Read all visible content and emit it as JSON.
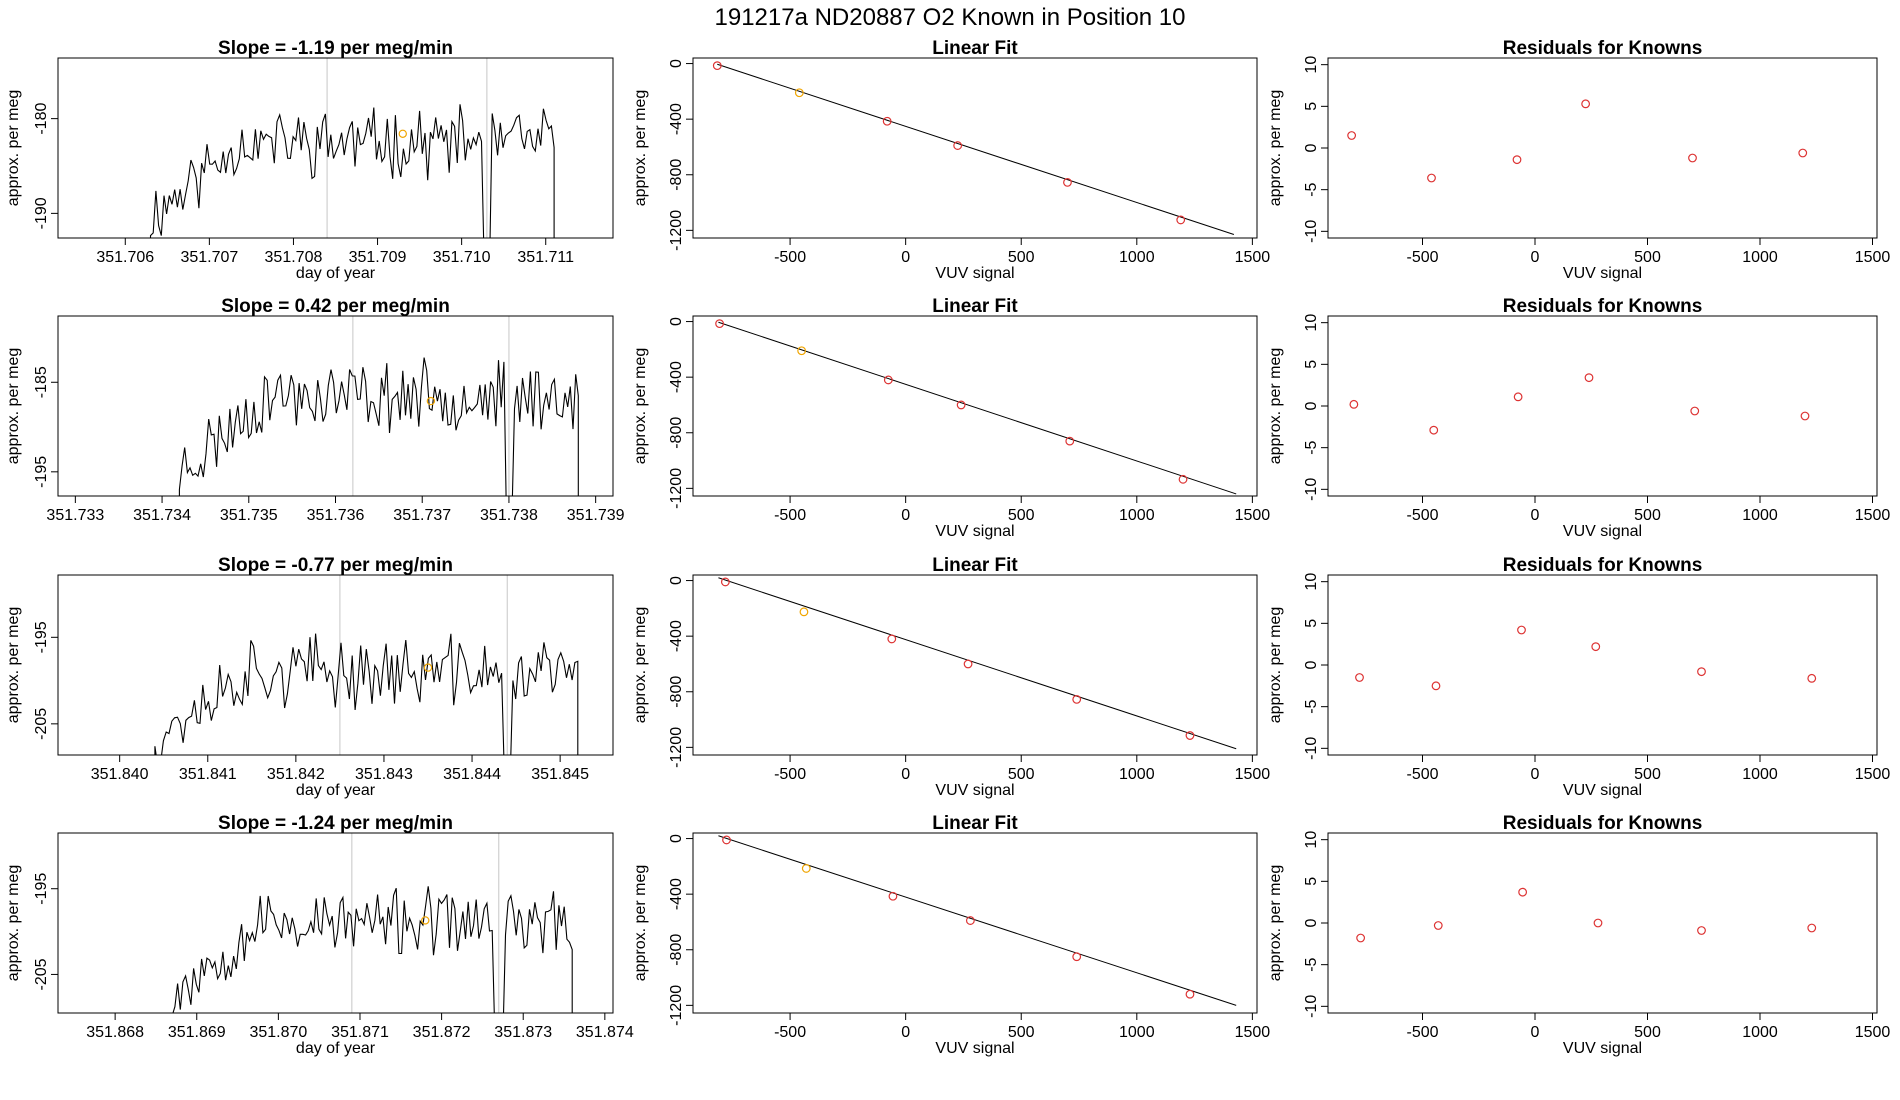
{
  "figure": {
    "title": "191217a      ND20887    O2 Known in Position  10",
    "colors": {
      "line": "#000000",
      "known": "#dd3333",
      "selected": "#f0a500",
      "vline": "#d0d0d0",
      "frame": "#000000"
    }
  },
  "chart_data": [
    {
      "type": "line",
      "panel": "timeseries",
      "row": 0,
      "title": "Slope =  -1.19  per meg/min",
      "xlabel": "day of year",
      "ylabel": "approx. per meg",
      "xlim": [
        351.7052,
        351.7118
      ],
      "ylim": [
        -192.6,
        -173.6
      ],
      "xticks": [
        351.706,
        351.707,
        351.708,
        351.709,
        351.71,
        351.711
      ],
      "xtick_labels": [
        "351.706",
        "351.707",
        "351.708",
        "351.709",
        "351.710",
        "351.711"
      ],
      "yticks": [
        -180,
        -190
      ],
      "ytick_labels": [
        "-180",
        "-190"
      ],
      "vlines": [
        351.7084,
        351.7103
      ],
      "start": 351.7063,
      "end": 351.7111,
      "base": -182.5,
      "amp": 2.8,
      "seed": 11,
      "selected_point": {
        "x": 351.7093,
        "y": -181.6
      }
    },
    {
      "type": "line",
      "panel": "timeseries",
      "row": 1,
      "title": "Slope =  0.42  per meg/min",
      "xlabel": "",
      "ylabel": "approx. per meg",
      "xlim": [
        351.7328,
        351.7392
      ],
      "ylim": [
        -197.7,
        -177.6
      ],
      "xticks": [
        351.733,
        351.734,
        351.735,
        351.736,
        351.737,
        351.738,
        351.739
      ],
      "xtick_labels": [
        "351.733",
        "351.734",
        "351.735",
        "351.736",
        "351.737",
        "351.738",
        "351.739"
      ],
      "yticks": [
        -185,
        -195
      ],
      "ytick_labels": [
        "-185",
        "-195"
      ],
      "vlines": [
        351.7362,
        351.738
      ],
      "start": 351.7342,
      "end": 351.7388,
      "base": -186.5,
      "amp": 3.0,
      "seed": 23,
      "selected_point": {
        "x": 351.7371,
        "y": -187.1
      }
    },
    {
      "type": "line",
      "panel": "timeseries",
      "row": 2,
      "title": "Slope =  -0.77  per meg/min",
      "xlabel": "day of year",
      "ylabel": "approx. per meg",
      "xlim": [
        351.8393,
        351.8456
      ],
      "ylim": [
        -208.6,
        -187.8
      ],
      "xticks": [
        351.84,
        351.841,
        351.842,
        351.843,
        351.844,
        351.845
      ],
      "xtick_labels": [
        "351.840",
        "351.841",
        "351.842",
        "351.843",
        "351.844",
        "351.845"
      ],
      "yticks": [
        -195,
        -205
      ],
      "ytick_labels": [
        "-195",
        "-205"
      ],
      "vlines": [
        351.8425,
        351.8444
      ],
      "start": 351.8404,
      "end": 351.8452,
      "base": -199.0,
      "amp": 3.2,
      "seed": 37,
      "selected_point": {
        "x": 351.8435,
        "y": -198.5
      }
    },
    {
      "type": "line",
      "panel": "timeseries",
      "row": 3,
      "title": "Slope =  -1.24  per meg/min",
      "xlabel": "day of year",
      "ylabel": "approx. per meg",
      "xlim": [
        351.8673,
        351.8741
      ],
      "ylim": [
        -209.5,
        -188.5
      ],
      "xticks": [
        351.868,
        351.869,
        351.87,
        351.871,
        351.872,
        351.873,
        351.874
      ],
      "xtick_labels": [
        "351.868",
        "351.869",
        "351.870",
        "351.871",
        "351.872",
        "351.873",
        "351.874"
      ],
      "yticks": [
        -195,
        -205
      ],
      "ytick_labels": [
        "-195",
        "-205"
      ],
      "vlines": [
        351.8709,
        351.8727
      ],
      "start": 351.8687,
      "end": 351.8736,
      "base": -199.0,
      "amp": 3.0,
      "seed": 53,
      "selected_point": {
        "x": 351.8718,
        "y": -198.7
      }
    },
    {
      "type": "scatter",
      "panel": "fit",
      "row": 0,
      "title": "Linear Fit",
      "xlabel": "VUV signal",
      "ylabel": "approx. per meg",
      "xlim": [
        -920,
        1520
      ],
      "ylim": [
        -1255,
        40
      ],
      "xticks": [
        -500,
        0,
        500,
        1000,
        1500
      ],
      "xtick_labels": [
        "-500",
        "0",
        "500",
        "1000",
        "1500"
      ],
      "yticks": [
        0,
        -400,
        -800,
        -1200
      ],
      "ytick_labels": [
        "0",
        "-400",
        "-800",
        "-1200"
      ],
      "points": [
        [
          -815,
          -15
        ],
        [
          -460,
          -210
        ],
        [
          -80,
          -415
        ],
        [
          225,
          -590
        ],
        [
          700,
          -855
        ],
        [
          1190,
          -1125
        ]
      ],
      "selected_index": 1,
      "fit_line": [
        [
          -815,
          -5
        ],
        [
          1420,
          -1230
        ]
      ]
    },
    {
      "type": "scatter",
      "panel": "fit",
      "row": 1,
      "title": "Linear Fit",
      "xlabel": "VUV signal",
      "ylabel": "approx. per meg",
      "xlim": [
        -920,
        1520
      ],
      "ylim": [
        -1255,
        40
      ],
      "xticks": [
        -500,
        0,
        500,
        1000,
        1500
      ],
      "xtick_labels": [
        "-500",
        "0",
        "500",
        "1000",
        "1500"
      ],
      "yticks": [
        0,
        -400,
        -800,
        -1200
      ],
      "ytick_labels": [
        "0",
        "-400",
        "-800",
        "-1200"
      ],
      "points": [
        [
          -805,
          -15
        ],
        [
          -450,
          -210
        ],
        [
          -75,
          -420
        ],
        [
          240,
          -600
        ],
        [
          710,
          -860
        ],
        [
          1200,
          -1135
        ]
      ],
      "selected_index": 1,
      "fit_line": [
        [
          -810,
          -5
        ],
        [
          1430,
          -1240
        ]
      ]
    },
    {
      "type": "scatter",
      "panel": "fit",
      "row": 2,
      "title": "Linear Fit",
      "xlabel": "VUV signal",
      "ylabel": "approx. per meg",
      "xlim": [
        -920,
        1520
      ],
      "ylim": [
        -1255,
        40
      ],
      "xticks": [
        -500,
        0,
        500,
        1000,
        1500
      ],
      "xtick_labels": [
        "-500",
        "0",
        "500",
        "1000",
        "1500"
      ],
      "yticks": [
        0,
        -400,
        -800,
        -1200
      ],
      "ytick_labels": [
        "0",
        "-400",
        "-800",
        "-1200"
      ],
      "points": [
        [
          -780,
          -10
        ],
        [
          -440,
          -225
        ],
        [
          -60,
          -420
        ],
        [
          270,
          -600
        ],
        [
          740,
          -855
        ],
        [
          1230,
          -1115
        ]
      ],
      "selected_index": 1,
      "fit_line": [
        [
          -810,
          20
        ],
        [
          1430,
          -1210
        ]
      ]
    },
    {
      "type": "scatter",
      "panel": "fit",
      "row": 3,
      "title": "Linear Fit",
      "xlabel": "VUV signal",
      "ylabel": "approx. per meg",
      "xlim": [
        -920,
        1520
      ],
      "ylim": [
        -1255,
        40
      ],
      "xticks": [
        -500,
        0,
        500,
        1000,
        1500
      ],
      "xtick_labels": [
        "-500",
        "0",
        "500",
        "1000",
        "1500"
      ],
      "yticks": [
        0,
        -400,
        -800,
        -1200
      ],
      "ytick_labels": [
        "0",
        "-400",
        "-800",
        "-1200"
      ],
      "points": [
        [
          -775,
          -10
        ],
        [
          -430,
          -215
        ],
        [
          -55,
          -415
        ],
        [
          280,
          -590
        ],
        [
          740,
          -850
        ],
        [
          1230,
          -1120
        ]
      ],
      "selected_index": 1,
      "fit_line": [
        [
          -810,
          20
        ],
        [
          1430,
          -1200
        ]
      ]
    },
    {
      "type": "scatter",
      "panel": "residuals",
      "row": 0,
      "title": "Residuals for Knowns",
      "xlabel": "VUV signal",
      "ylabel": "approx. per meg",
      "xlim": [
        -920,
        1520
      ],
      "ylim": [
        -10.8,
        10.8
      ],
      "xticks": [
        -500,
        0,
        500,
        1000,
        1500
      ],
      "xtick_labels": [
        "-500",
        "0",
        "500",
        "1000",
        "1500"
      ],
      "yticks": [
        10,
        5,
        0,
        -5,
        -10
      ],
      "ytick_labels": [
        "10",
        "5",
        "0",
        "-5",
        "-10"
      ],
      "points": [
        [
          -815,
          1.5
        ],
        [
          -460,
          -3.6
        ],
        [
          -80,
          -1.4
        ],
        [
          225,
          5.3
        ],
        [
          700,
          -1.2
        ],
        [
          1190,
          -0.6
        ]
      ]
    },
    {
      "type": "scatter",
      "panel": "residuals",
      "row": 1,
      "title": "Residuals for Knowns",
      "xlabel": "VUV signal",
      "ylabel": "approx. per meg",
      "xlim": [
        -920,
        1520
      ],
      "ylim": [
        -10.8,
        10.8
      ],
      "xticks": [
        -500,
        0,
        500,
        1000,
        1500
      ],
      "xtick_labels": [
        "-500",
        "0",
        "500",
        "1000",
        "1500"
      ],
      "yticks": [
        10,
        5,
        0,
        -5,
        -10
      ],
      "ytick_labels": [
        "10",
        "5",
        "0",
        "-5",
        "-10"
      ],
      "points": [
        [
          -805,
          0.2
        ],
        [
          -450,
          -2.9
        ],
        [
          -75,
          1.1
        ],
        [
          240,
          3.4
        ],
        [
          710,
          -0.6
        ],
        [
          1200,
          -1.2
        ]
      ]
    },
    {
      "type": "scatter",
      "panel": "residuals",
      "row": 2,
      "title": "Residuals for Knowns",
      "xlabel": "VUV signal",
      "ylabel": "approx. per meg",
      "xlim": [
        -920,
        1520
      ],
      "ylim": [
        -10.8,
        10.8
      ],
      "xticks": [
        -500,
        0,
        500,
        1000,
        1500
      ],
      "xtick_labels": [
        "-500",
        "0",
        "500",
        "1000",
        "1500"
      ],
      "yticks": [
        10,
        5,
        0,
        -5,
        -10
      ],
      "ytick_labels": [
        "10",
        "5",
        "0",
        "-5",
        "-10"
      ],
      "points": [
        [
          -780,
          -1.5
        ],
        [
          -440,
          -2.5
        ],
        [
          -60,
          4.2
        ],
        [
          270,
          2.2
        ],
        [
          740,
          -0.8
        ],
        [
          1230,
          -1.6
        ]
      ]
    },
    {
      "type": "scatter",
      "panel": "residuals",
      "row": 3,
      "title": "Residuals for Knowns",
      "xlabel": "VUV signal",
      "ylabel": "approx. per meg",
      "xlim": [
        -920,
        1520
      ],
      "ylim": [
        -10.8,
        10.8
      ],
      "xticks": [
        -500,
        0,
        500,
        1000,
        1500
      ],
      "xtick_labels": [
        "-500",
        "0",
        "500",
        "1000",
        "1500"
      ],
      "yticks": [
        10,
        5,
        0,
        -5,
        -10
      ],
      "ytick_labels": [
        "10",
        "5",
        "0",
        "-5",
        "-10"
      ],
      "points": [
        [
          -775,
          -1.8
        ],
        [
          -430,
          -0.3
        ],
        [
          -55,
          3.7
        ],
        [
          280,
          0.0
        ],
        [
          740,
          -0.9
        ],
        [
          1230,
          -0.6
        ]
      ]
    }
  ]
}
